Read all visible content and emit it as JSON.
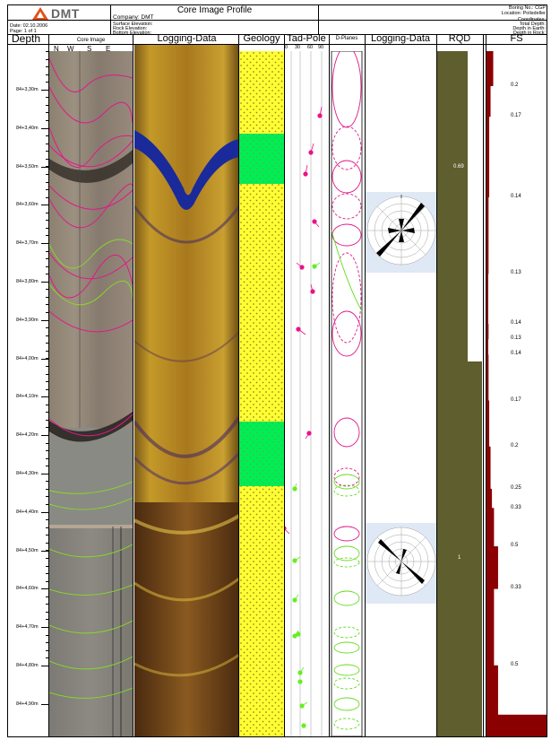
{
  "header": {
    "logo_text": "DMT",
    "title": "Core Image Profile",
    "company": "Company: DMT",
    "surface_elevation": "Surface Elevation:",
    "rock_elevation": "Rock Elevation:",
    "bottom_elevation": "Bottom Elevation:",
    "date": "Date: 02.10.2006",
    "page": "Page: 1 of 1",
    "boring_no": "Boring No.: CGP",
    "location": "Location: Polisdeller",
    "coordinates": "Coordinates:",
    "total_depth": "Total Depth:",
    "depth_in_earth": "Depth in Earth:",
    "depth_in_rock": "Depth in Rock:"
  },
  "columns": {
    "depth": "Depth",
    "core_image": "Core Image",
    "logging_data_1": "Logging-Data",
    "geology": "Geology",
    "tad_pole": "Tad-Pole",
    "d_planes": "D-Planes",
    "logging_data_2": "Logging-Data",
    "rqd": "RQD",
    "fs": "FS"
  },
  "compass": {
    "n": "N",
    "w": "W",
    "s": "S",
    "e": "E"
  },
  "tadpole_scale": [
    "0",
    "30",
    "60",
    "90"
  ],
  "depth_labels": [
    "84+3,30m",
    "84+3,40m",
    "84+3,50m",
    "84+3,60m",
    "84+3,70m",
    "84+3,80m",
    "84+3,90m",
    "84+4,00m",
    "84+4,10m",
    "84+4,20m",
    "84+4,30m",
    "84+4,40m",
    "84+4,50m",
    "84+4,60m",
    "84+4,70m",
    "84+4,80m",
    "84+4,90m"
  ],
  "rqd_values": {
    "upper": "0.69",
    "lower": "1"
  },
  "fs_values": [
    {
      "label": "0.2",
      "depth_m": 3.29,
      "level": 0.14
    },
    {
      "label": "0.17",
      "depth_m": 3.37,
      "level": 0.1
    },
    {
      "label": "0.14",
      "depth_m": 3.58,
      "level": 0.08
    },
    {
      "label": "0.13",
      "depth_m": 3.78,
      "level": 0.07
    },
    {
      "label": "0.14",
      "depth_m": 3.91,
      "level": 0.08
    },
    {
      "label": "0.13",
      "depth_m": 3.95,
      "level": 0.07
    },
    {
      "label": "0.14",
      "depth_m": 3.99,
      "level": 0.08
    },
    {
      "label": "0.17",
      "depth_m": 4.11,
      "level": 0.1
    },
    {
      "label": "0.2",
      "depth_m": 4.23,
      "level": 0.14
    },
    {
      "label": "0.25",
      "depth_m": 4.34,
      "level": 0.18
    },
    {
      "label": "0.33",
      "depth_m": 4.39,
      "level": 0.24
    },
    {
      "label": "0.5",
      "depth_m": 4.49,
      "level": 0.36
    },
    {
      "label": "0.33",
      "depth_m": 4.6,
      "level": 0.24
    },
    {
      "label": "0.5",
      "depth_m": 4.8,
      "level": 0.36
    }
  ],
  "colors": {
    "geology_yellow": "#ffff33",
    "geology_green": "#00ee55",
    "rqd_olive": "#5e5e2e",
    "fs_red": "#8b0000",
    "rose_bg": "#dfe9f5",
    "tad_magenta": "#ee1188",
    "tad_green": "#66ee22"
  }
}
